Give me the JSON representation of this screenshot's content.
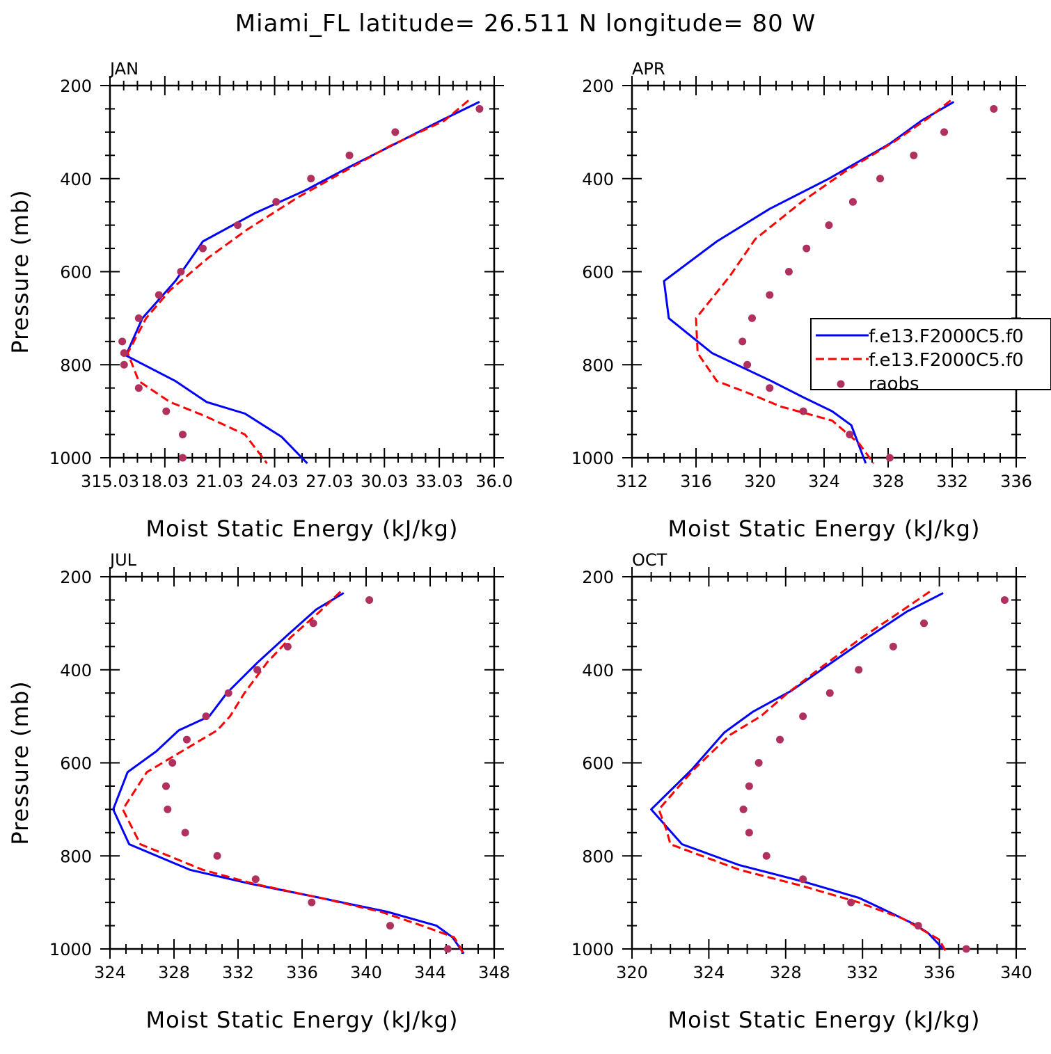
{
  "figure_title": "Miami_FL  latitude= 26.511 N longitude= 80 W",
  "legend": {
    "entries": [
      "f.e13.F2000C5.f0",
      "f.e13.F2000C5.f0",
      "raobs"
    ],
    "colors": [
      "#0000ff",
      "#ff0000",
      "#b03060"
    ],
    "styles": [
      "solid",
      "dashed",
      "dots"
    ]
  },
  "colors": {
    "model_solid": "#0000ff",
    "model_dashed": "#ff0000",
    "raobs": "#b03060"
  },
  "chart_data": [
    {
      "type": "line",
      "panel": "JAN",
      "xlabel": "Moist Static Energy (kJ/kg)",
      "ylabel": "Pressure (mb)",
      "xlim": [
        315.03,
        336.0
      ],
      "xticks": [
        "315.03",
        "18.03",
        "21.03",
        "24.03",
        "27.03",
        "30.03",
        "33.03",
        "36.0"
      ],
      "ylim": [
        1000,
        200
      ],
      "yticks": [
        "200",
        "400",
        "600",
        "800",
        "1000"
      ],
      "legend": false,
      "series": [
        {
          "style": "solid",
          "color": "#0000ff",
          "x": [
            335.2,
            333.1,
            330.6,
            328.1,
            325.7,
            322.9,
            320.1,
            318.6,
            316.8,
            315.9,
            318.6,
            320.3,
            322.4,
            324.4,
            325.8
          ],
          "y": [
            235,
            275,
            325,
            375,
            425,
            475,
            535,
            620,
            700,
            780,
            835,
            880,
            905,
            955,
            1012
          ]
        },
        {
          "style": "dashed",
          "color": "#ff0000",
          "x": [
            334.6,
            333.3,
            330.3,
            327.8,
            325.3,
            322.5,
            320.4,
            318.3,
            317.0,
            316.0,
            316.6,
            318.3,
            320.2,
            322.4,
            323.6
          ],
          "y": [
            232,
            275,
            330,
            385,
            440,
            510,
            570,
            640,
            700,
            775,
            835,
            880,
            910,
            950,
            1012
          ]
        },
        {
          "style": "dots",
          "color": "#b03060",
          "x": [
            335.2,
            330.6,
            328.1,
            326.0,
            324.1,
            322.0,
            320.1,
            318.9,
            317.7,
            316.6,
            315.7,
            315.8,
            315.8,
            316.6,
            318.1,
            319.0
          ],
          "y": [
            250,
            300,
            350,
            400,
            450,
            500,
            550,
            600,
            650,
            700,
            750,
            775,
            800,
            850,
            900,
            950
          ]
        },
        {
          "style": "dots",
          "color": "#b03060",
          "x": [
            319.0
          ],
          "y": [
            1000
          ]
        }
      ]
    },
    {
      "type": "line",
      "panel": "APR",
      "xlabel": "Moist Static Energy (kJ/kg)",
      "ylabel": "",
      "xlim": [
        312,
        336
      ],
      "xticks": [
        "312",
        "316",
        "320",
        "324",
        "328",
        "332",
        "336"
      ],
      "ylim": [
        1000,
        200
      ],
      "yticks": [
        "200",
        "400",
        "600",
        "800",
        "1000"
      ],
      "legend": true,
      "legend_position": "right",
      "series": [
        {
          "style": "solid",
          "color": "#0000ff",
          "x": [
            332.1,
            330.1,
            328.1,
            324.3,
            320.6,
            317.3,
            314.0,
            314.3,
            317.0,
            320.7,
            322.7,
            324.5,
            325.7,
            326.6
          ],
          "y": [
            235,
            275,
            325,
            400,
            465,
            535,
            620,
            700,
            775,
            835,
            870,
            900,
            930,
            1012
          ]
        },
        {
          "style": "dashed",
          "color": "#ff0000",
          "x": [
            331.9,
            330.5,
            328.4,
            325.3,
            322.6,
            319.7,
            318.1,
            316.0,
            316.1,
            317.3,
            319.2,
            321.3,
            324.5,
            326.2,
            327.1
          ],
          "y": [
            232,
            270,
            320,
            385,
            450,
            530,
            610,
            700,
            775,
            835,
            860,
            890,
            920,
            970,
            1012
          ]
        },
        {
          "style": "dots",
          "color": "#b03060",
          "x": [
            334.6,
            331.5,
            329.6,
            327.5,
            325.8,
            324.3,
            322.9,
            321.8,
            320.6,
            319.5,
            318.9,
            319.2,
            320.6,
            322.7,
            325.6,
            328.1
          ],
          "y": [
            250,
            300,
            350,
            400,
            450,
            500,
            550,
            600,
            650,
            700,
            750,
            800,
            850,
            900,
            950,
            1000
          ]
        }
      ]
    },
    {
      "type": "line",
      "panel": "JUL",
      "xlabel": "Moist Static Energy (kJ/kg)",
      "ylabel": "Pressure (mb)",
      "xlim": [
        324,
        348
      ],
      "xticks": [
        "324",
        "328",
        "332",
        "336",
        "340",
        "344",
        "348"
      ],
      "ylim": [
        1000,
        200
      ],
      "yticks": [
        "200",
        "400",
        "600",
        "800",
        "1000"
      ],
      "legend": false,
      "series": [
        {
          "style": "solid",
          "color": "#0000ff",
          "x": [
            338.6,
            336.9,
            335.1,
            333.2,
            331.3,
            330.2,
            328.3,
            326.9,
            325.1,
            324.2,
            325.2,
            329.0,
            332.8,
            337.1,
            341.3,
            344.4,
            345.4,
            346.1
          ],
          "y": [
            235,
            270,
            325,
            385,
            450,
            500,
            530,
            575,
            620,
            700,
            775,
            830,
            860,
            890,
            920,
            950,
            975,
            1010
          ]
        },
        {
          "style": "dashed",
          "color": "#ff0000",
          "x": [
            338.4,
            337.1,
            335.3,
            333.8,
            332.4,
            331.5,
            330.7,
            326.3,
            324.8,
            325.9,
            329.8,
            333.0,
            337.1,
            340.9,
            343.5,
            345.5,
            346.1
          ],
          "y": [
            232,
            275,
            330,
            385,
            450,
            500,
            530,
            620,
            700,
            775,
            830,
            860,
            890,
            920,
            950,
            975,
            1010
          ]
        },
        {
          "style": "dots",
          "color": "#b03060",
          "x": [
            340.2,
            336.7,
            335.1,
            333.2,
            331.4,
            330.0,
            328.8,
            327.9,
            327.5,
            327.6,
            328.7,
            330.7,
            333.1,
            336.6,
            341.5,
            345.1
          ],
          "y": [
            250,
            300,
            350,
            400,
            450,
            500,
            550,
            600,
            650,
            700,
            750,
            800,
            850,
            900,
            950,
            1000
          ]
        }
      ]
    },
    {
      "type": "line",
      "panel": "OCT",
      "xlabel": "Moist Static Energy (kJ/kg)",
      "ylabel": "",
      "xlim": [
        320,
        340
      ],
      "xticks": [
        "320",
        "324",
        "328",
        "332",
        "336",
        "340"
      ],
      "ylim": [
        1000,
        200
      ],
      "yticks": [
        "200",
        "400",
        "600",
        "800",
        "1000"
      ],
      "legend": false,
      "series": [
        {
          "style": "solid",
          "color": "#0000ff",
          "x": [
            336.2,
            334.3,
            332.3,
            330.2,
            328.3,
            326.3,
            324.8,
            323.1,
            321.0,
            322.6,
            325.6,
            328.9,
            331.8,
            333.6,
            334.6,
            335.4,
            336.2
          ],
          "y": [
            235,
            275,
            330,
            390,
            445,
            490,
            535,
            615,
            700,
            775,
            820,
            855,
            890,
            925,
            945,
            965,
            1000
          ]
        },
        {
          "style": "dashed",
          "color": "#ff0000",
          "x": [
            335.5,
            333.8,
            332.0,
            330.0,
            328.1,
            326.7,
            325.1,
            323.2,
            321.4,
            321.8,
            322.0,
            325.6,
            328.9,
            331.8,
            334.1,
            336.0,
            336.4
          ],
          "y": [
            232,
            280,
            330,
            390,
            450,
            500,
            540,
            615,
            700,
            745,
            775,
            830,
            865,
            900,
            935,
            980,
            1010
          ]
        },
        {
          "style": "dots",
          "color": "#b03060",
          "x": [
            339.4,
            335.2,
            333.6,
            331.8,
            330.3,
            328.9,
            327.7,
            326.6,
            326.1,
            325.8,
            326.1,
            327.0,
            328.9,
            331.4,
            334.9,
            337.4
          ],
          "y": [
            250,
            300,
            350,
            400,
            450,
            500,
            550,
            600,
            650,
            700,
            750,
            800,
            850,
            900,
            950,
            1000
          ]
        }
      ]
    }
  ]
}
